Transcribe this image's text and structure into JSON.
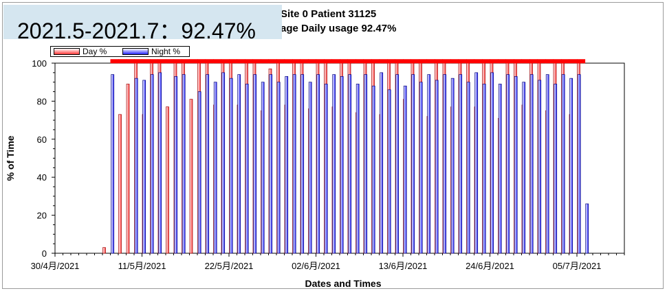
{
  "overlay_text": "2021.5-2021.7：92.47%",
  "title_line1": "Site 0 Patient 31125",
  "title_line2": "age Daily usage 92.47%",
  "colors": {
    "day": "#ff3a3a",
    "night": "#2828ff",
    "marker": "#ff0000",
    "overlay_bg": "#d5e6f0"
  },
  "chart_data": {
    "type": "bar",
    "title": "Site 0 Patient 31125",
    "subtitle": "age Daily usage 92.47%",
    "xlabel": "Dates and Times",
    "ylabel": "% of Time",
    "ylim": [
      0,
      100
    ],
    "yticks": [
      0,
      20,
      40,
      60,
      80,
      100
    ],
    "xticks": [
      "30/4月/2021",
      "11/5月/2021",
      "22/5月/2021",
      "02/6月/2021",
      "13/6月/2021",
      "24/6月/2021",
      "05/7月/2021"
    ],
    "x_start": "2021-04-30",
    "x_end": "2021-07-11",
    "legend": [
      "Day %",
      "Night %"
    ],
    "legend_position": "top-left",
    "marker_level": 101,
    "series": [
      {
        "name": "Day %",
        "points": [
          [
            "2021-05-06",
            3
          ],
          [
            "2021-05-08",
            73
          ],
          [
            "2021-05-09",
            89
          ],
          [
            "2021-05-10",
            100
          ],
          [
            "2021-05-11",
            73
          ],
          [
            "2021-05-12",
            100
          ],
          [
            "2021-05-13",
            100
          ],
          [
            "2021-05-14",
            77
          ],
          [
            "2021-05-15",
            100
          ],
          [
            "2021-05-16",
            100
          ],
          [
            "2021-05-17",
            81
          ],
          [
            "2021-05-18",
            100
          ],
          [
            "2021-05-19",
            100
          ],
          [
            "2021-05-20",
            78
          ],
          [
            "2021-05-21",
            100
          ],
          [
            "2021-05-22",
            100
          ],
          [
            "2021-05-23",
            78
          ],
          [
            "2021-05-24",
            100
          ],
          [
            "2021-05-25",
            100
          ],
          [
            "2021-05-26",
            75
          ],
          [
            "2021-05-27",
            97
          ],
          [
            "2021-05-28",
            100
          ],
          [
            "2021-05-29",
            78
          ],
          [
            "2021-05-30",
            100
          ],
          [
            "2021-05-31",
            100
          ],
          [
            "2021-06-01",
            76
          ],
          [
            "2021-06-02",
            100
          ],
          [
            "2021-06-03",
            100
          ],
          [
            "2021-06-04",
            77
          ],
          [
            "2021-06-05",
            100
          ],
          [
            "2021-06-06",
            100
          ],
          [
            "2021-06-07",
            74
          ],
          [
            "2021-06-08",
            100
          ],
          [
            "2021-06-09",
            100
          ],
          [
            "2021-06-10",
            73
          ],
          [
            "2021-06-11",
            100
          ],
          [
            "2021-06-12",
            100
          ],
          [
            "2021-06-13",
            81
          ],
          [
            "2021-06-14",
            100
          ],
          [
            "2021-06-15",
            100
          ],
          [
            "2021-06-16",
            72
          ],
          [
            "2021-06-17",
            100
          ],
          [
            "2021-06-18",
            100
          ],
          [
            "2021-06-19",
            77
          ],
          [
            "2021-06-20",
            100
          ],
          [
            "2021-06-21",
            100
          ],
          [
            "2021-06-22",
            77
          ],
          [
            "2021-06-23",
            100
          ],
          [
            "2021-06-24",
            100
          ],
          [
            "2021-06-25",
            71
          ],
          [
            "2021-06-26",
            100
          ],
          [
            "2021-06-27",
            100
          ],
          [
            "2021-06-28",
            78
          ],
          [
            "2021-06-29",
            100
          ],
          [
            "2021-06-30",
            100
          ],
          [
            "2021-07-01",
            75
          ],
          [
            "2021-07-02",
            100
          ],
          [
            "2021-07-03",
            100
          ],
          [
            "2021-07-04",
            73
          ],
          [
            "2021-07-05",
            100
          ]
        ]
      },
      {
        "name": "Night %",
        "points": [
          [
            "2021-05-07",
            94
          ],
          [
            "2021-05-10",
            92
          ],
          [
            "2021-05-11",
            91
          ],
          [
            "2021-05-12",
            94
          ],
          [
            "2021-05-13",
            95
          ],
          [
            "2021-05-15",
            93
          ],
          [
            "2021-05-16",
            94
          ],
          [
            "2021-05-18",
            85
          ],
          [
            "2021-05-19",
            94
          ],
          [
            "2021-05-20",
            90
          ],
          [
            "2021-05-21",
            95
          ],
          [
            "2021-05-22",
            92
          ],
          [
            "2021-05-23",
            94
          ],
          [
            "2021-05-24",
            89
          ],
          [
            "2021-05-25",
            94
          ],
          [
            "2021-05-26",
            90
          ],
          [
            "2021-05-27",
            94
          ],
          [
            "2021-05-28",
            90
          ],
          [
            "2021-05-29",
            93
          ],
          [
            "2021-05-30",
            94
          ],
          [
            "2021-05-31",
            94
          ],
          [
            "2021-06-01",
            90
          ],
          [
            "2021-06-02",
            94
          ],
          [
            "2021-06-03",
            89
          ],
          [
            "2021-06-04",
            94
          ],
          [
            "2021-06-05",
            93
          ],
          [
            "2021-06-06",
            94
          ],
          [
            "2021-06-07",
            89
          ],
          [
            "2021-06-08",
            94
          ],
          [
            "2021-06-09",
            88
          ],
          [
            "2021-06-10",
            95
          ],
          [
            "2021-06-11",
            86
          ],
          [
            "2021-06-12",
            94
          ],
          [
            "2021-06-13",
            88
          ],
          [
            "2021-06-14",
            94
          ],
          [
            "2021-06-15",
            90
          ],
          [
            "2021-06-16",
            94
          ],
          [
            "2021-06-17",
            91
          ],
          [
            "2021-06-18",
            94
          ],
          [
            "2021-06-19",
            92
          ],
          [
            "2021-06-20",
            94
          ],
          [
            "2021-06-21",
            90
          ],
          [
            "2021-06-22",
            95
          ],
          [
            "2021-06-23",
            89
          ],
          [
            "2021-06-24",
            95
          ],
          [
            "2021-06-25",
            89
          ],
          [
            "2021-06-26",
            94
          ],
          [
            "2021-06-27",
            93
          ],
          [
            "2021-06-28",
            90
          ],
          [
            "2021-06-29",
            94
          ],
          [
            "2021-06-30",
            91
          ],
          [
            "2021-07-01",
            94
          ],
          [
            "2021-07-02",
            89
          ],
          [
            "2021-07-03",
            94
          ],
          [
            "2021-07-04",
            92
          ],
          [
            "2021-07-05",
            94
          ],
          [
            "2021-07-06",
            26
          ]
        ]
      }
    ]
  }
}
